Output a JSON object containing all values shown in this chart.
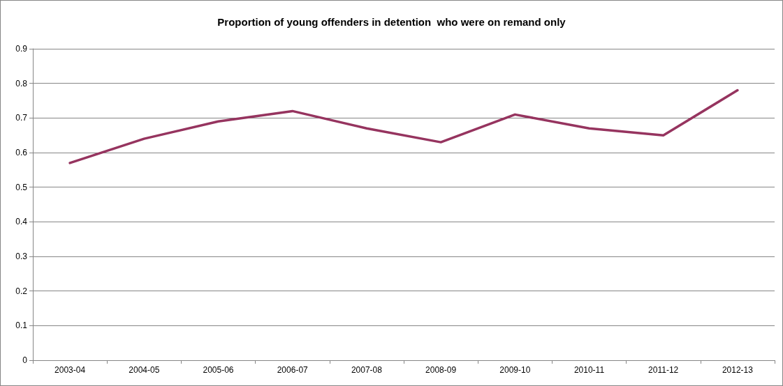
{
  "chart_data": {
    "type": "line",
    "title": "Proportion of young offenders in detention  who were on remand only",
    "categories": [
      "2003-04",
      "2004-05",
      "2005-06",
      "2006-07",
      "2007-08",
      "2008-09",
      "2009-10",
      "2010-11",
      "2011-12",
      "2012-13"
    ],
    "series": [
      {
        "color": "#96345f",
        "values": [
          0.57,
          0.64,
          0.69,
          0.72,
          0.67,
          0.63,
          0.71,
          0.67,
          0.65,
          0.78
        ]
      }
    ],
    "ylim": [
      0,
      0.9
    ],
    "yticks": [
      0,
      0.1,
      0.2,
      0.3,
      0.4,
      0.5,
      0.6,
      0.7,
      0.8,
      0.9
    ],
    "grid": "y",
    "marker": "none",
    "line_style": "solid"
  }
}
